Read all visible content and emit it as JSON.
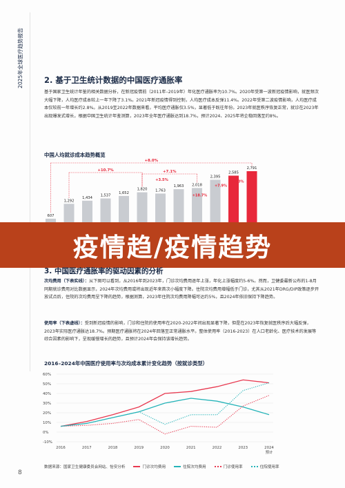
{
  "side_title": "2025年全球医疗趋势报告",
  "page_number": "8",
  "section2": {
    "title": "2. 基于卫生统计数据的中国医疗通胀率",
    "paragraph": "基于国家卫生统计年鉴的相关数据分析，在新冠疫情前（2011年–2019年）年化医疗通胀率为10.7%。2020年受第一波新冠疫情影响，就医频次大幅下降，人均医疗成本较上一年下降了3.1%。2021年新冠疫情得到控制，人均医疗成本反弹11.4%。2022年受第二波疫情影响，人均医疗成本仅较前一年增长约2.8%。从2019至2022年数据来看，平均医疗通胀仅3.5%，显著低于既往年份。2023年就医秩序恢复正常，就诊在2023年出现爆发式增长，根据中国卫生统计年鉴测算，2023年全年医疗通胀达到18.7%，预计2024、2025年将企稳回落至约8%。"
  },
  "bar_chart_title": "中国人均就诊成本趋势概览",
  "section3": {
    "title": "3. 中国医疗通胀率的驱动因素的分析",
    "para1_label": "次均费用（下表实线）：",
    "para1": "从下图可以看到，从2016年到2023年，门诊次均费用逐年上涨，年化上涨幅度约5-6%。然而，卫健委最新公布的1-8月同期就诊费用对比数据显示，2024年次均费用或将出现近年来首次小幅度下降。住院次均费用增幅低于门诊，尤其从2021年DRG/DIP政策逐步开放试点后，住院的次均费用呈下降的趋势，根据测算，2023年住院次均费用降幅可达约5%，且2024年依旧保持下降趋势。",
    "para2_label": "使用率（下表虚线）：",
    "para2": "受到新冠疫情的影响，门诊和住院的使用率在2020-2022年间出现显著下降，但是在2023年恢复就医秩序后大幅反弹，2023年实际医疗通胀达18.7%。预期医疗通胀将在2024年回落至正常通胀水平。整体使用率（2016-2023）在人口老龄化、医疗技术的发展等综合因素的影响下，呈现缓慢增长的趋势，且预计2024年会保持该增长趋势。"
  },
  "line_chart_title": "2016–2024年中国医疗使用率与次均成本累计变化趋势（按就诊类型）",
  "overlay_text": "疫情趋/疫情趋势",
  "legend": {
    "source": "数据来源：国家卫生健康委员会网站、怡安分析",
    "items": [
      "门诊次均费用",
      "住院次均费用",
      "门诊使用率",
      "住院使用率"
    ]
  },
  "colors": {
    "bar_gray": "#c9ccd1",
    "bar_red": "#e8283b",
    "outpatient_red": "#e8384f",
    "inpatient_teal": "#24b3b8",
    "accent_red": "#e8283b",
    "navy": "#1b2b47"
  },
  "chart_data": [
    {
      "type": "bar",
      "title": "中国人均就诊成本趋势概览",
      "values": [
        607,
        1292,
        1434,
        1537,
        1652,
        1820,
        1763,
        1963,
        2018,
        2395,
        2585,
        2791
      ],
      "highlight_last": 2,
      "annotations": [
        "+8.0%",
        "+10.7%",
        "+7.1%",
        "+3.5%",
        "+18.7%",
        "+7.9%",
        "+8.0%"
      ]
    },
    {
      "type": "line",
      "title": "2016–2024年中国医疗使用率与次均成本累计变化趋势（按就诊类型）",
      "x": [
        "2016",
        "2017",
        "2018",
        "2019",
        "2020",
        "2021",
        "2022",
        "2023",
        "2024"
      ],
      "x_suffix_last": "预计",
      "ylim": [
        -10,
        60
      ],
      "yticks": [
        "60%",
        "50%",
        "40%",
        "30%",
        "20%",
        "10%",
        "0%",
        "-10%"
      ],
      "series": [
        {
          "name": "门诊次均费用",
          "style": "solid",
          "color": "#e8384f",
          "values": [
            6,
            11,
            18,
            26,
            40,
            42,
            47,
            54,
            51
          ]
        },
        {
          "name": "住院次均费用",
          "style": "solid",
          "color": "#24b3b8",
          "values": [
            6,
            9,
            15,
            21,
            30,
            35,
            32,
            26,
            18
          ]
        },
        {
          "name": "门诊使用率",
          "style": "dotted",
          "color": "#e8384f",
          "values": [
            6,
            7,
            9,
            13,
            -2,
            6,
            5,
            27,
            38
          ]
        },
        {
          "name": "住院使用率",
          "style": "dotted",
          "color": "#24b3b8",
          "values": [
            6,
            9,
            15,
            21,
            8,
            18,
            18,
            43,
            51
          ]
        }
      ]
    }
  ]
}
